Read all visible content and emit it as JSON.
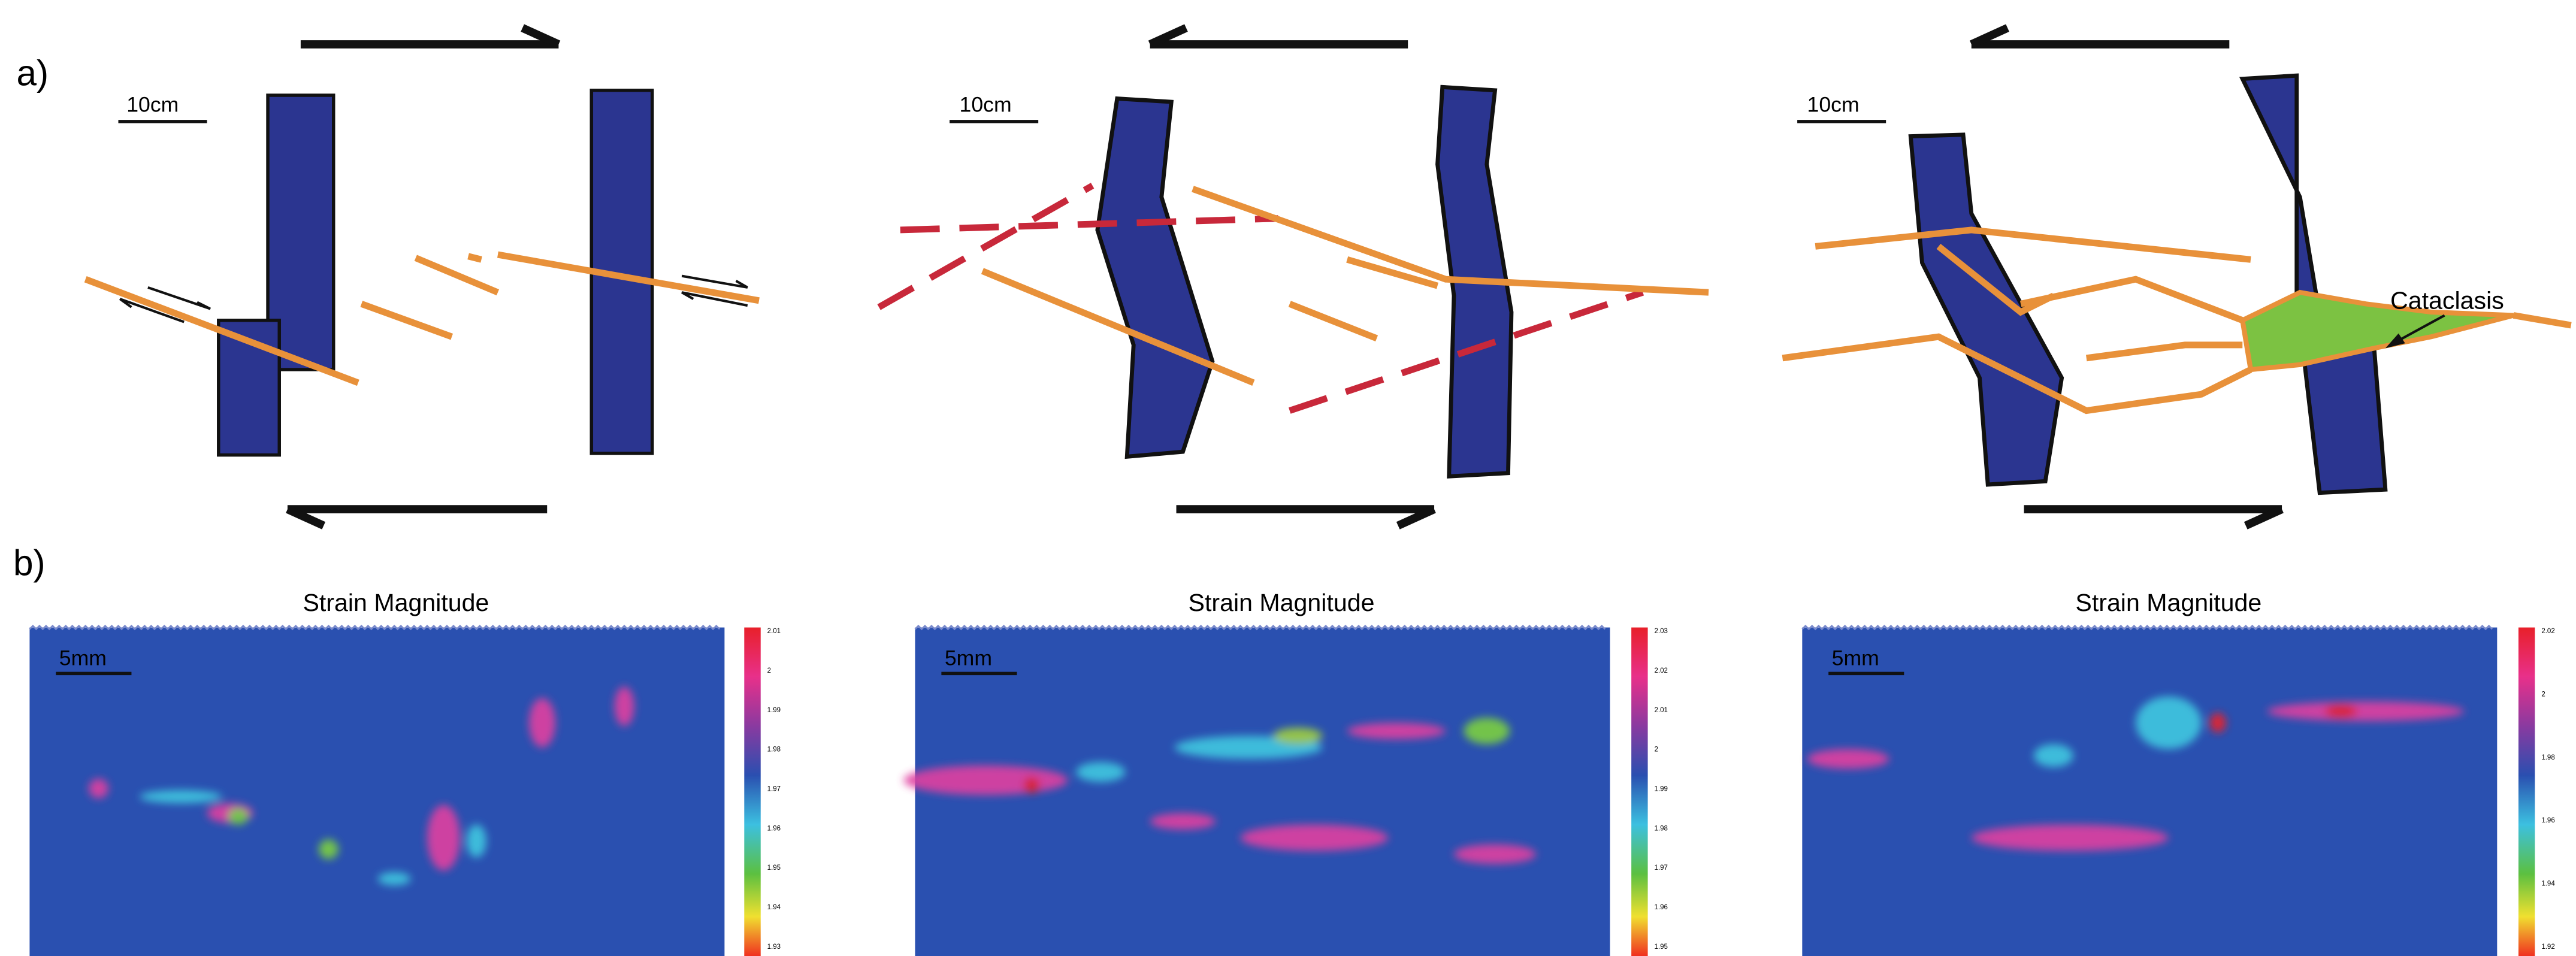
{
  "labels": {
    "a": "a)",
    "b": "b)"
  },
  "sketches": [
    {
      "scale": "10cm"
    },
    {
      "scale": "10cm"
    },
    {
      "scale": "10cm",
      "annotation": "Cataclasis"
    }
  ],
  "strain_maps": [
    {
      "title": "Strain Magnitude",
      "scale": "5mm",
      "colorbar_ticks": [
        2.01,
        2,
        1.99,
        1.98,
        1.97,
        1.96,
        1.95,
        1.94,
        1.93
      ]
    },
    {
      "title": "Strain Magnitude",
      "scale": "5mm",
      "colorbar_ticks": [
        2.03,
        2.02,
        2.01,
        2,
        1.99,
        1.98,
        1.97,
        1.96,
        1.95
      ]
    },
    {
      "title": "Strain Magnitude",
      "scale": "5mm",
      "colorbar_ticks": [
        2.02,
        2,
        1.98,
        1.96,
        1.94,
        1.92
      ]
    }
  ]
}
